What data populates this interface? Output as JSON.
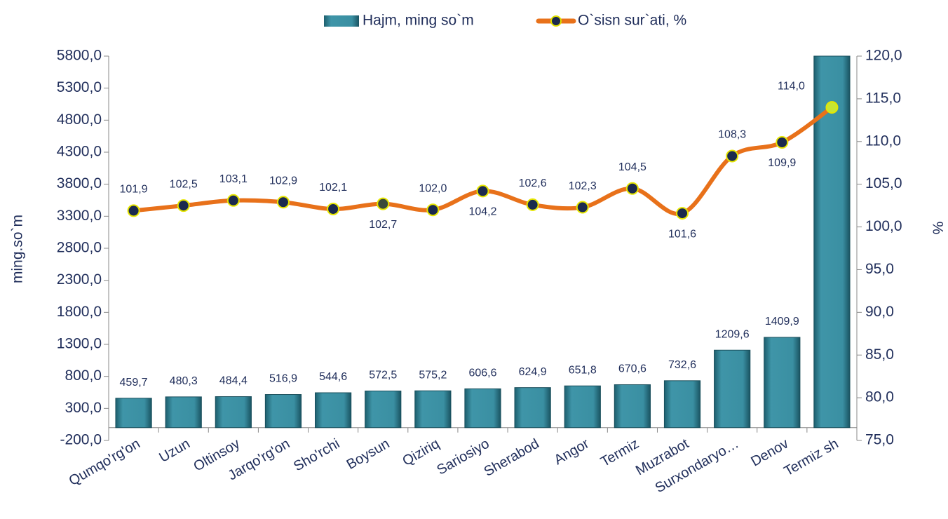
{
  "chart_data": {
    "type": "bar-line",
    "ylabel": "ming.so`m",
    "y2label": "%",
    "categories": [
      "Qumqo'rg'on",
      "Uzun",
      "Oltinsoy",
      "Jarqo'rg'on",
      "Sho'rchi",
      "Boysun",
      "Qiziriq",
      "Sariosiyo",
      "Sherabod",
      "Angor",
      "Termiz",
      "Muzrabot",
      "Surxondaryo…",
      "Denov",
      "Termiz sh"
    ],
    "series": [
      {
        "name": "Hajm, ming so`m",
        "type": "bar",
        "color": "#2e8496",
        "values": [
          459.7,
          480.3,
          484.4,
          516.9,
          544.6,
          572.5,
          575.2,
          606.6,
          624.9,
          651.8,
          670.6,
          732.6,
          1209.6,
          1409.9,
          5800
        ],
        "value_labels": [
          "459,7",
          "480,3",
          "484,4",
          "516,9",
          "544,6",
          "572,5",
          "575,2",
          "606,6",
          "624,9",
          "651,8",
          "670,6",
          "732,6",
          "1209,6",
          "1409,9",
          null
        ]
      },
      {
        "name": "O`sisn sur`ati, %",
        "type": "line",
        "axis": "y2",
        "color": "#e8711a",
        "values": [
          101.9,
          102.5,
          103.1,
          102.9,
          102.1,
          102.7,
          102.0,
          104.2,
          102.6,
          102.3,
          104.5,
          101.6,
          108.3,
          109.9,
          114.0
        ],
        "value_labels": [
          "101,9",
          "102,5",
          "103,1",
          "102,9",
          "102,1",
          "102,7",
          "102,0",
          "104,2",
          "102,6",
          "102,3",
          "104,5",
          "101,6",
          "108,3",
          "109,9",
          "114,0"
        ]
      }
    ],
    "ylim": [
      -200,
      5800
    ],
    "yticks": [
      {
        "value": -200,
        "label": "-200,0"
      },
      {
        "value": 300,
        "label": "300,0"
      },
      {
        "value": 800,
        "label": "800,0"
      },
      {
        "value": 1300,
        "label": "1300,0"
      },
      {
        "value": 1800,
        "label": "1800,0"
      },
      {
        "value": 2300,
        "label": "2300,0"
      },
      {
        "value": 2800,
        "label": "2800,0"
      },
      {
        "value": 3300,
        "label": "3300,0"
      },
      {
        "value": 3800,
        "label": "3800,0"
      },
      {
        "value": 4300,
        "label": "4300,0"
      },
      {
        "value": 4800,
        "label": "4800,0"
      },
      {
        "value": 5300,
        "label": "5300,0"
      },
      {
        "value": 5800,
        "label": "5800,0"
      }
    ],
    "y2lim": [
      75,
      120
    ],
    "y2ticks": [
      {
        "value": 75,
        "label": "75,0"
      },
      {
        "value": 80,
        "label": "80,0"
      },
      {
        "value": 85,
        "label": "85,0"
      },
      {
        "value": 90,
        "label": "90,0"
      },
      {
        "value": 95,
        "label": "95,0"
      },
      {
        "value": 100,
        "label": "100,0"
      },
      {
        "value": 105,
        "label": "105,0"
      },
      {
        "value": 110,
        "label": "110,0"
      },
      {
        "value": 115,
        "label": "115,0"
      },
      {
        "value": 120,
        "label": "120,0"
      }
    ]
  }
}
